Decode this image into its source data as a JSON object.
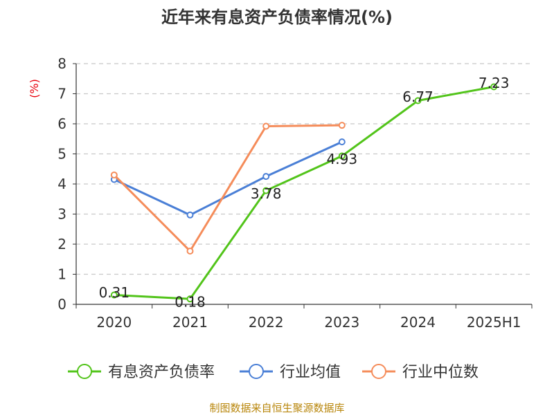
{
  "chart_data": {
    "type": "line",
    "title": "近年来有息资产负债率情况(%)",
    "ylabel": "(%)",
    "xlabel": "",
    "categories": [
      "2020",
      "2021",
      "2022",
      "2023",
      "2024",
      "2025H1"
    ],
    "ylim": [
      0,
      8
    ],
    "yticks": [
      0,
      1,
      2,
      3,
      4,
      5,
      6,
      7,
      8
    ],
    "grid": true,
    "legend_position": "bottom",
    "series": [
      {
        "name": "有息资产负债率",
        "color": "#52c41a",
        "values": [
          0.31,
          0.18,
          3.78,
          4.93,
          6.77,
          7.23
        ],
        "labels": [
          "0.31",
          "0.18",
          "3.78",
          "4.93",
          "6.77",
          "7.23"
        ]
      },
      {
        "name": "行业均值",
        "color": "#4a7fd6",
        "values": [
          4.15,
          2.97,
          4.25,
          5.4,
          null,
          null
        ]
      },
      {
        "name": "行业中位数",
        "color": "#f58c5a",
        "values": [
          4.3,
          1.77,
          5.92,
          5.95,
          null,
          null
        ]
      }
    ]
  },
  "source": "制图数据来自恒生聚源数据库"
}
